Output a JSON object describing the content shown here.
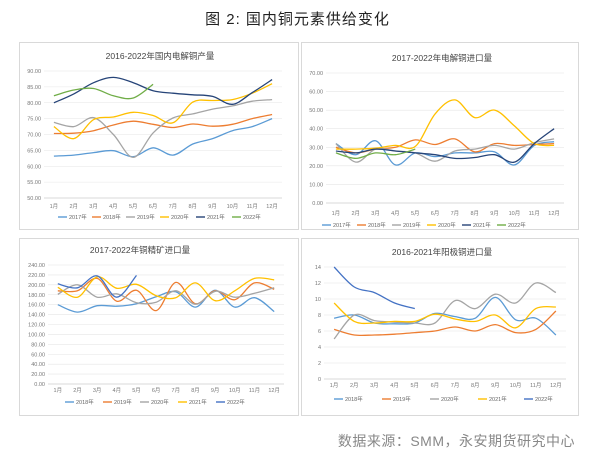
{
  "figure_title": "图 2:  国内铜元素供给变化",
  "source": "数据来源：SMM，永安期货研究中心",
  "colors": {
    "2016": "#5b9bd5",
    "2017": "#5b9bd5",
    "2018": "#ed7d31",
    "2019": "#a5a5a5",
    "2020": "#ffc000",
    "2021": "#264478",
    "2022": "#70ad47",
    "2022b": "#4472c4"
  },
  "chart_data": [
    {
      "type": "line",
      "title": "2016-2022年国内电解铜产量",
      "x": [
        "1月",
        "2月",
        "3月",
        "4月",
        "5月",
        "6月",
        "7月",
        "8月",
        "9月",
        "10月",
        "11月",
        "12月"
      ],
      "ylim": [
        50,
        90
      ],
      "yticks": [
        "50.00",
        "55.00",
        "60.00",
        "65.00",
        "70.00",
        "75.00",
        "80.00",
        "85.00",
        "90.00"
      ],
      "series": [
        {
          "name": "2017年",
          "color": "#5b9bd5",
          "values": [
            63.2,
            63.5,
            64.3,
            64.9,
            63.0,
            65.8,
            63.5,
            67.0,
            68.7,
            71.2,
            72.5,
            75.0
          ]
        },
        {
          "name": "2018年",
          "color": "#ed7d31",
          "values": [
            70.3,
            70.4,
            71.2,
            73.0,
            74.2,
            73.2,
            72.2,
            73.3,
            72.6,
            73.2,
            75.0,
            76.3
          ]
        },
        {
          "name": "2019年",
          "color": "#a5a5a5",
          "values": [
            73.8,
            72.5,
            75.3,
            70.0,
            62.8,
            70.5,
            75.2,
            76.5,
            78.0,
            79.0,
            80.5,
            81.0
          ]
        },
        {
          "name": "2020年",
          "color": "#ffc000",
          "values": [
            72.5,
            68.7,
            74.7,
            75.5,
            77.0,
            76.0,
            73.7,
            80.2,
            80.7,
            81.0,
            83.0,
            86.0
          ]
        },
        {
          "name": "2021年",
          "color": "#264478",
          "values": [
            80.0,
            82.8,
            86.3,
            88.0,
            86.3,
            83.8,
            83.0,
            82.5,
            82.0,
            79.5,
            83.2,
            87.3
          ]
        },
        {
          "name": "2022年",
          "color": "#70ad47",
          "values": [
            82.2,
            84.0,
            84.5,
            82.2,
            81.5,
            85.8,
            null,
            null,
            null,
            null,
            null,
            null
          ]
        }
      ]
    },
    {
      "type": "line",
      "title": "2017-2022年电解铜进口量",
      "x": [
        "1月",
        "2月",
        "3月",
        "4月",
        "5月",
        "6月",
        "7月",
        "8月",
        "9月",
        "10月",
        "11月",
        "12月"
      ],
      "ylim": [
        0,
        70
      ],
      "yticks": [
        "0.00",
        "10.00",
        "20.00",
        "30.00",
        "40.00",
        "50.00",
        "60.00",
        "70.00"
      ],
      "series": [
        {
          "name": "2017年",
          "color": "#5b9bd5",
          "values": [
            32.0,
            26.0,
            33.5,
            20.5,
            27.0,
            25.0,
            27.0,
            27.0,
            27.5,
            20.5,
            31.0,
            33.0
          ]
        },
        {
          "name": "2018年",
          "color": "#ed7d31",
          "values": [
            30.0,
            27.0,
            29.0,
            30.0,
            34.0,
            31.5,
            34.5,
            27.5,
            32.0,
            31.0,
            31.5,
            32.0
          ]
        },
        {
          "name": "2019年",
          "color": "#a5a5a5",
          "values": [
            32.0,
            22.0,
            29.0,
            28.0,
            27.0,
            22.5,
            28.0,
            29.0,
            31.0,
            29.0,
            32.5,
            34.5
          ]
        },
        {
          "name": "2020年",
          "color": "#ffc000",
          "values": [
            29.0,
            29.0,
            29.5,
            31.0,
            30.5,
            48.0,
            55.5,
            46.0,
            50.0,
            41.5,
            32.0,
            31.0
          ]
        },
        {
          "name": "2021年",
          "color": "#264478",
          "values": [
            28.0,
            27.0,
            29.0,
            28.0,
            27.0,
            26.0,
            24.0,
            24.5,
            26.0,
            22.0,
            32.0,
            40.0
          ]
        },
        {
          "name": "2022年",
          "color": "#70ad47",
          "values": [
            27.0,
            24.0,
            27.0,
            26.0,
            29.0,
            null,
            null,
            null,
            null,
            null,
            null,
            null
          ]
        }
      ]
    },
    {
      "type": "line",
      "title": "2017-2022年铜精矿进口量",
      "x": [
        "1月",
        "2月",
        "3月",
        "4月",
        "5月",
        "6月",
        "7月",
        "8月",
        "9月",
        "10月",
        "11月",
        "12月"
      ],
      "ylim": [
        0,
        240
      ],
      "yticks": [
        "0.00",
        "20.00",
        "40.00",
        "60.00",
        "80.00",
        "100.00",
        "120.00",
        "140.00",
        "160.00",
        "180.00",
        "200.00",
        "220.00",
        "240.00"
      ],
      "series": [
        {
          "name": "2018年",
          "color": "#5b9bd5",
          "values": [
            160,
            145,
            158,
            157,
            162,
            176,
            186,
            155,
            189,
            155,
            174,
            146
          ]
        },
        {
          "name": "2019年",
          "color": "#ed7d31",
          "values": [
            188,
            188,
            213,
            167,
            189,
            148,
            205,
            162,
            188,
            170,
            204,
            191
          ]
        },
        {
          "name": "2020年",
          "color": "#a5a5a5",
          "values": [
            181,
            200,
            175,
            182,
            164,
            165,
            188,
            161,
            187,
            175,
            183,
            194
          ]
        },
        {
          "name": "2021年",
          "color": "#ffc000",
          "values": [
            195,
            175,
            216,
            193,
            201,
            178,
            174,
            204,
            168,
            188,
            213,
            210
          ]
        },
        {
          "name": "2022年",
          "color": "#4472c4",
          "values": [
            202,
            194,
            218,
            175,
            219,
            null,
            null,
            null,
            null,
            null,
            null,
            null
          ]
        }
      ]
    },
    {
      "type": "line",
      "title": "2016-2021年阳极铜进口量",
      "x": [
        "1月",
        "2月",
        "3月",
        "4月",
        "5月",
        "6月",
        "7月",
        "8月",
        "9月",
        "10月",
        "11月",
        "12月"
      ],
      "ylim": [
        0,
        14
      ],
      "yticks": [
        "0",
        "2",
        "4",
        "6",
        "8",
        "10",
        "12",
        "14"
      ],
      "series": [
        {
          "name": "2018年",
          "color": "#5b9bd5",
          "values": [
            7.6,
            8.0,
            7.0,
            6.9,
            7.0,
            8.2,
            7.8,
            7.6,
            10.2,
            7.4,
            7.6,
            5.5
          ]
        },
        {
          "name": "2019年",
          "color": "#ed7d31",
          "values": [
            6.2,
            5.5,
            5.5,
            5.6,
            5.8,
            6.0,
            6.5,
            6.0,
            6.8,
            5.8,
            6.2,
            8.5
          ]
        },
        {
          "name": "2020年",
          "color": "#a5a5a5",
          "values": [
            5.0,
            8.0,
            7.3,
            7.1,
            7.0,
            7.0,
            9.8,
            8.8,
            10.6,
            9.5,
            12.0,
            10.8
          ]
        },
        {
          "name": "2021年",
          "color": "#ffc000",
          "values": [
            9.5,
            7.2,
            7.0,
            7.2,
            7.2,
            8.1,
            7.5,
            7.2,
            8.0,
            6.4,
            8.8,
            9.0
          ]
        },
        {
          "name": "2022年",
          "color": "#4472c4",
          "values": [
            14.0,
            11.5,
            10.8,
            9.5,
            8.8,
            null,
            null,
            null,
            null,
            null,
            null,
            null
          ]
        }
      ]
    }
  ]
}
